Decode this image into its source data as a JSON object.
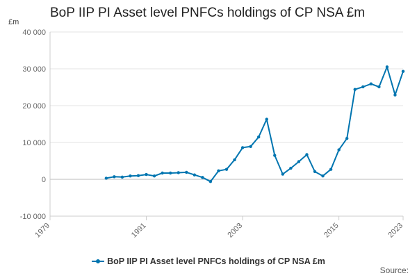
{
  "chart_data": {
    "type": "line",
    "title": "BoP IIP PI Asset level PNFCs holdings of CP NSA £m",
    "ylabel": "£m",
    "xlabel": "",
    "ylim": [
      -10000,
      40000
    ],
    "xlim": [
      1979,
      2023
    ],
    "grid": true,
    "y_ticks": [
      -10000,
      0,
      10000,
      20000,
      30000,
      40000
    ],
    "y_tick_labels": [
      "-10 000",
      "0",
      "10 000",
      "20 000",
      "30 000",
      "40 000"
    ],
    "x_ticks": [
      1979,
      1991,
      2003,
      2015,
      2023
    ],
    "x_tick_labels": [
      "1979",
      "1991",
      "2003",
      "2015",
      "2023"
    ],
    "legend_position": "bottom",
    "series": [
      {
        "name": "BoP IIP PI Asset level PNFCs holdings of CP NSA £m",
        "color": "#0075b0",
        "x": [
          1986,
          1987,
          1988,
          1989,
          1990,
          1991,
          1992,
          1993,
          1994,
          1995,
          1996,
          1997,
          1998,
          1999,
          2000,
          2001,
          2002,
          2003,
          2004,
          2005,
          2006,
          2007,
          2008,
          2009,
          2010,
          2011,
          2012,
          2013,
          2014,
          2015,
          2016,
          2017,
          2018,
          2019,
          2020,
          2021,
          2022,
          2023
        ],
        "values": [
          300,
          700,
          600,
          900,
          1000,
          1300,
          900,
          1700,
          1700,
          1800,
          1900,
          1200,
          500,
          -600,
          2300,
          2700,
          5300,
          8600,
          8900,
          11500,
          16300,
          6500,
          1400,
          3000,
          4800,
          6700,
          2100,
          900,
          2700,
          8000,
          11100,
          24400,
          25100,
          25900,
          25100,
          30500,
          22900,
          29300
        ]
      }
    ]
  },
  "source_label": "Source:"
}
